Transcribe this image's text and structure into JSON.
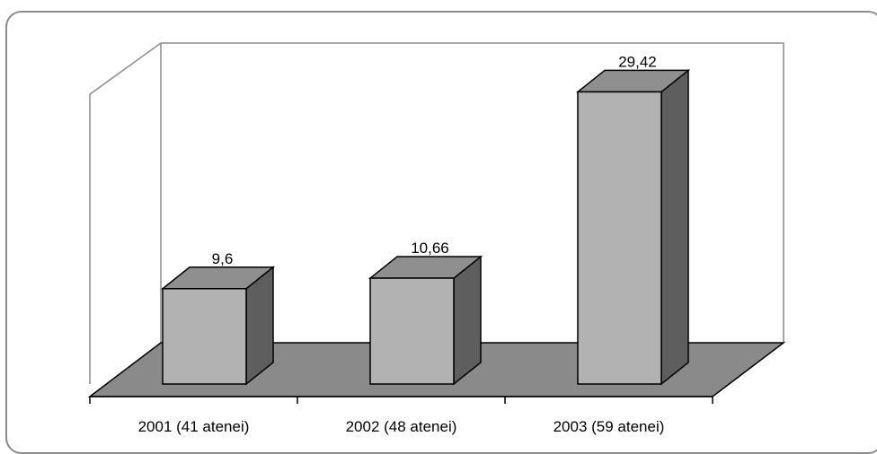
{
  "chart_data": {
    "type": "bar",
    "categories": [
      "2001 (41 atenei)",
      "2002 (48 atenei)",
      "2003 (59 atenei)"
    ],
    "values": [
      9.6,
      10.66,
      29.42
    ],
    "data_labels": [
      "9,6",
      "10,66",
      "29,42"
    ],
    "ylim": [
      0,
      30
    ],
    "grid": false,
    "legend": "none",
    "style": "3d-column",
    "colors": {
      "bar_front": "#b2b2b2",
      "bar_top": "#8f8f8f",
      "bar_side": "#5e5e5e",
      "floor": "#8a8a8a",
      "walls": "#ffffff",
      "frame": "#8c8c8c"
    }
  }
}
